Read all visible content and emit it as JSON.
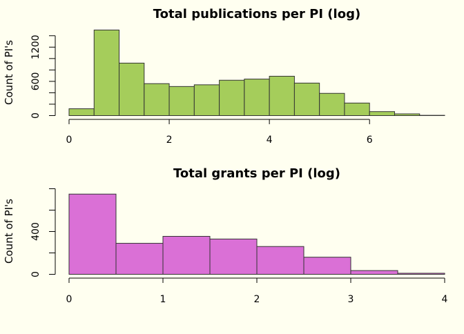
{
  "colors": {
    "background": "#FFFFF0",
    "bar_stroke": "#333333",
    "axis": "#000000"
  },
  "chart_data": [
    {
      "type": "bar",
      "title": "Total publications per PI (log)",
      "xlabel": "",
      "ylabel": "Count of PI's",
      "bin_width": 0.5,
      "x_bins": [
        [
          0,
          0.5
        ],
        [
          0.5,
          1
        ],
        [
          1,
          1.5
        ],
        [
          1.5,
          2
        ],
        [
          2,
          2.5
        ],
        [
          2.5,
          3
        ],
        [
          3,
          3.5
        ],
        [
          3.5,
          4
        ],
        [
          4,
          4.5
        ],
        [
          4.5,
          5
        ],
        [
          5,
          5.5
        ],
        [
          5.5,
          6
        ],
        [
          6,
          6.5
        ],
        [
          6.5,
          7
        ],
        [
          7,
          7.5
        ]
      ],
      "values": [
        120,
        1500,
        920,
        560,
        510,
        540,
        620,
        640,
        690,
        570,
        390,
        220,
        70,
        30,
        5
      ],
      "xlim": [
        0,
        7.5
      ],
      "ylim": [
        0,
        1500
      ],
      "x_ticks": [
        "0",
        "2",
        "4",
        "6"
      ],
      "y_ticks": [
        "0",
        "600",
        "1200"
      ],
      "y_minor_ticks": [
        200,
        400,
        800,
        1000,
        1400
      ],
      "color": "#A5CD5B"
    },
    {
      "type": "bar",
      "title": "Total grants per PI (log)",
      "xlabel": "",
      "ylabel": "Count of PI's",
      "bin_width": 0.5,
      "x_bins": [
        [
          0,
          0.5
        ],
        [
          0.5,
          1
        ],
        [
          1,
          1.5
        ],
        [
          1.5,
          2
        ],
        [
          2,
          2.5
        ],
        [
          2.5,
          3
        ],
        [
          3,
          3.5
        ],
        [
          3.5,
          4
        ]
      ],
      "values": [
        750,
        290,
        355,
        330,
        260,
        160,
        35,
        10
      ],
      "xlim": [
        0,
        4
      ],
      "ylim": [
        0,
        800
      ],
      "x_ticks": [
        "0",
        "1",
        "2",
        "3",
        "4"
      ],
      "y_ticks": [
        "0",
        "400"
      ],
      "y_minor_ticks": [
        200,
        600,
        800
      ],
      "color": "#DA70D6"
    }
  ]
}
